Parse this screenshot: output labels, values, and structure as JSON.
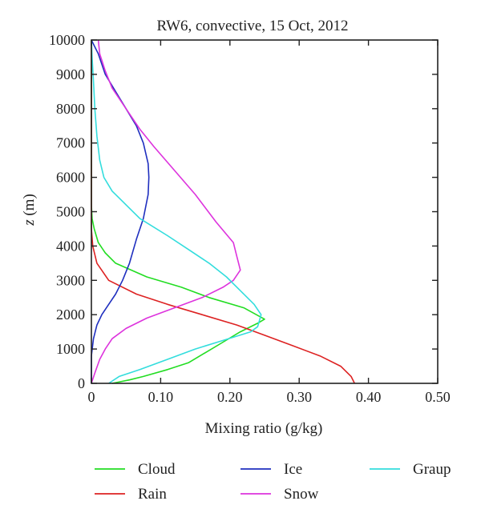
{
  "chart_data": {
    "type": "line",
    "title": "RW6, convective, 15 Oct, 2012",
    "xlabel": "Mixing ratio (g/kg)",
    "ylabel_var": "z",
    "ylabel_unit": " (m)",
    "xlim": [
      0,
      0.5
    ],
    "ylim": [
      0,
      10000
    ],
    "x_ticks": [
      0,
      0.1,
      0.2,
      0.3,
      0.4,
      0.5
    ],
    "x_tick_labels": [
      "0",
      "0.10",
      "0.20",
      "0.30",
      "0.40",
      "0.50"
    ],
    "y_ticks": [
      0,
      1000,
      2000,
      3000,
      4000,
      5000,
      6000,
      7000,
      8000,
      9000,
      10000
    ],
    "y_tick_labels": [
      "0",
      "1000",
      "2000",
      "3000",
      "4000",
      "5000",
      "6000",
      "7000",
      "8000",
      "9000",
      "10000"
    ],
    "grid": false,
    "legend_position": "bottom",
    "series": [
      {
        "name": "Cloud",
        "color": "#22dd22",
        "points": [
          [
            0.03,
            0
          ],
          [
            0.055,
            100
          ],
          [
            0.075,
            200
          ],
          [
            0.11,
            400
          ],
          [
            0.14,
            600
          ],
          [
            0.165,
            900
          ],
          [
            0.19,
            1200
          ],
          [
            0.215,
            1500
          ],
          [
            0.24,
            1750
          ],
          [
            0.25,
            1870
          ],
          [
            0.22,
            2200
          ],
          [
            0.17,
            2500
          ],
          [
            0.13,
            2800
          ],
          [
            0.08,
            3100
          ],
          [
            0.035,
            3500
          ],
          [
            0.02,
            3800
          ],
          [
            0.01,
            4100
          ],
          [
            0.004,
            4500
          ],
          [
            0.001,
            4800
          ],
          [
            0,
            5200
          ],
          [
            0,
            10000
          ]
        ]
      },
      {
        "name": "Rain",
        "color": "#dd2222",
        "points": [
          [
            0.38,
            0
          ],
          [
            0.375,
            200
          ],
          [
            0.36,
            500
          ],
          [
            0.33,
            800
          ],
          [
            0.29,
            1100
          ],
          [
            0.25,
            1400
          ],
          [
            0.21,
            1700
          ],
          [
            0.16,
            2000
          ],
          [
            0.11,
            2300
          ],
          [
            0.065,
            2600
          ],
          [
            0.025,
            3000
          ],
          [
            0.008,
            3500
          ],
          [
            0.002,
            4000
          ],
          [
            0,
            4500
          ],
          [
            0,
            10000
          ]
        ]
      },
      {
        "name": "Ice",
        "color": "#1f2fbf",
        "points": [
          [
            0,
            0
          ],
          [
            0,
            800
          ],
          [
            0.003,
            1300
          ],
          [
            0.008,
            1700
          ],
          [
            0.015,
            2000
          ],
          [
            0.025,
            2300
          ],
          [
            0.035,
            2600
          ],
          [
            0.045,
            3000
          ],
          [
            0.055,
            3500
          ],
          [
            0.065,
            4200
          ],
          [
            0.075,
            4800
          ],
          [
            0.082,
            5500
          ],
          [
            0.083,
            6000
          ],
          [
            0.082,
            6400
          ],
          [
            0.075,
            7000
          ],
          [
            0.065,
            7500
          ],
          [
            0.05,
            8000
          ],
          [
            0.035,
            8500
          ],
          [
            0.02,
            9000
          ],
          [
            0.01,
            9600
          ],
          [
            0,
            10000
          ]
        ]
      },
      {
        "name": "Snow",
        "color": "#dd33dd",
        "points": [
          [
            0,
            0
          ],
          [
            0.005,
            300
          ],
          [
            0.012,
            700
          ],
          [
            0.02,
            1000
          ],
          [
            0.03,
            1300
          ],
          [
            0.05,
            1600
          ],
          [
            0.08,
            1900
          ],
          [
            0.12,
            2200
          ],
          [
            0.16,
            2500
          ],
          [
            0.19,
            2800
          ],
          [
            0.205,
            3000
          ],
          [
            0.215,
            3300
          ],
          [
            0.21,
            3700
          ],
          [
            0.205,
            4100
          ],
          [
            0.18,
            4700
          ],
          [
            0.15,
            5500
          ],
          [
            0.12,
            6200
          ],
          [
            0.09,
            6900
          ],
          [
            0.07,
            7400
          ],
          [
            0.05,
            8000
          ],
          [
            0.03,
            8600
          ],
          [
            0.02,
            9100
          ],
          [
            0.012,
            9600
          ],
          [
            0.01,
            10000
          ]
        ]
      },
      {
        "name": "Graup",
        "color": "#33dddd",
        "points": [
          [
            0.025,
            0
          ],
          [
            0.04,
            200
          ],
          [
            0.07,
            400
          ],
          [
            0.11,
            700
          ],
          [
            0.15,
            1000
          ],
          [
            0.19,
            1250
          ],
          [
            0.23,
            1500
          ],
          [
            0.24,
            1650
          ],
          [
            0.245,
            2000
          ],
          [
            0.235,
            2300
          ],
          [
            0.215,
            2700
          ],
          [
            0.195,
            3100
          ],
          [
            0.17,
            3500
          ],
          [
            0.14,
            3900
          ],
          [
            0.11,
            4300
          ],
          [
            0.07,
            4800
          ],
          [
            0.05,
            5200
          ],
          [
            0.03,
            5600
          ],
          [
            0.018,
            6000
          ],
          [
            0.012,
            6500
          ],
          [
            0.008,
            7200
          ],
          [
            0.005,
            8000
          ],
          [
            0.003,
            8800
          ],
          [
            0.001,
            9500
          ],
          [
            0,
            10000
          ]
        ]
      }
    ]
  }
}
